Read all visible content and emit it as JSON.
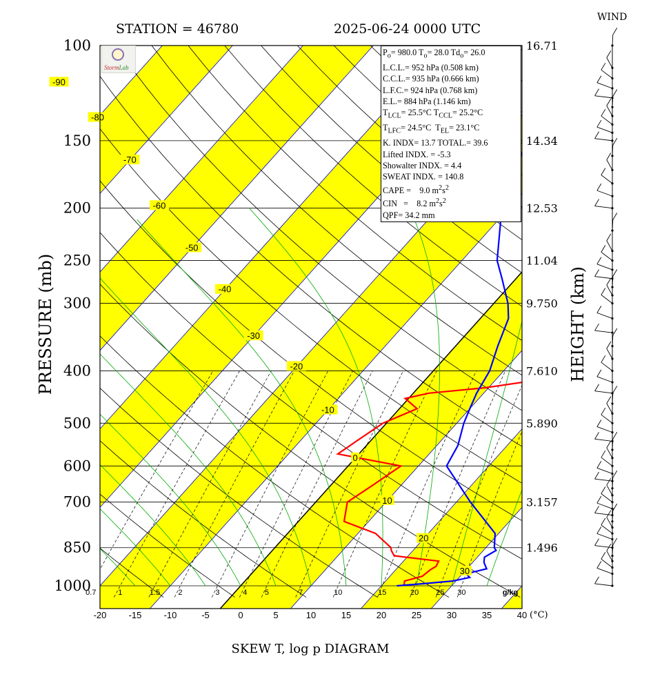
{
  "header": {
    "station": "STATION = 46780",
    "datetime": "2025-06-24 0000 UTC",
    "wind_title": "WIND"
  },
  "footer": {
    "title": "SKEW T, log p DIAGRAM"
  },
  "colors": {
    "temperature": "#ff0000",
    "dewpoint": "#0000ff",
    "band": "#ffff00",
    "isotherm": "#0000cc",
    "dry_adiabat": "#000000",
    "moist_adiabat": "#00aa00",
    "mixing_ratio": "#000000"
  },
  "indices": {
    "p0": "980.0",
    "t0": "28.0",
    "td0": "26.0",
    "lcl": "L.C.L.= 952 hPa (0.508 km)",
    "ccl": "C.C.L.= 935 hPa (0.666 km)",
    "lfc": "L.F.C.= 924 hPa (0.768 km)",
    "el": "E.L.= 884 hPa (1.146 km)",
    "t_lcl": "25.5°C",
    "t_ccl": "25.2°C",
    "t_lfc": "24.5°C",
    "t_el": "23.1°C",
    "k_total": "K. INDX= 13.7  TOTAL.= 39.6",
    "lifted": "Lifted INDX. =   -5.3",
    "showalter": "Showalter INDX. =     4.4",
    "sweat": "SWEAT INDX. =   140.8",
    "cape_val": "9.0",
    "cin_val": "8.2",
    "qpf": "QPF= 34.2 mm"
  },
  "chart_data": {
    "type": "line",
    "title": "SKEW T, log p DIAGRAM",
    "ylabel": "PRESSURE (mb)",
    "ylabel_right": "HEIGHT (km)",
    "xlabel_unit": "(°C)",
    "mixing_ratio_unit": "g/kg",
    "ylim": [
      1000,
      100
    ],
    "xlim": [
      -20,
      40
    ],
    "y_scale": "log",
    "x_ticks": [
      "-20",
      "-15",
      "-10",
      "-5",
      "0",
      "5",
      "10",
      "15",
      "20",
      "25",
      "30",
      "35",
      "40"
    ],
    "pressure_ticks": [
      "100",
      "150",
      "200",
      "250",
      "300",
      "400",
      "500",
      "600",
      "700",
      "850",
      "1000"
    ],
    "pressure_levels": [
      100,
      150,
      200,
      250,
      300,
      400,
      500,
      600,
      700,
      850,
      1000
    ],
    "height_ticks": [
      {
        "p": 100,
        "label": "16.71"
      },
      {
        "p": 150,
        "label": "14.34"
      },
      {
        "p": 200,
        "label": "12.53"
      },
      {
        "p": 250,
        "label": "11.04"
      },
      {
        "p": 300,
        "label": "9.750"
      },
      {
        "p": 400,
        "label": "7.610"
      },
      {
        "p": 500,
        "label": "5.890"
      },
      {
        "p": 700,
        "label": "3.157"
      },
      {
        "p": 850,
        "label": "1.496"
      }
    ],
    "isotherm_labels": [
      {
        "t": -90,
        "p": 117,
        "label": "-90"
      },
      {
        "t": -80,
        "p": 136,
        "label": "-80"
      },
      {
        "t": -70,
        "p": 163,
        "label": "-70"
      },
      {
        "t": -60,
        "p": 198,
        "label": "-60"
      },
      {
        "t": -50,
        "p": 237,
        "label": "-50"
      },
      {
        "t": -40,
        "p": 283,
        "label": "-40"
      },
      {
        "t": -30,
        "p": 345,
        "label": "-30"
      },
      {
        "t": -20,
        "p": 393,
        "label": "-20"
      },
      {
        "t": -10,
        "p": 473,
        "label": "-10"
      },
      {
        "t": 0,
        "p": 580,
        "label": "0"
      },
      {
        "t": 10,
        "p": 696,
        "label": "10"
      },
      {
        "t": 20,
        "p": 818,
        "label": "20"
      },
      {
        "t": 30,
        "p": 940,
        "label": "30"
      }
    ],
    "mixing_ratio_lines": [
      0.7,
      1,
      1.5,
      2,
      3,
      4,
      5,
      7,
      10,
      15,
      20,
      25,
      30
    ],
    "mixing_ratio_labels": [
      "0.7",
      "1",
      "1.5",
      "2",
      "3",
      "4",
      "5",
      "7",
      "10",
      "15",
      "20",
      "25",
      "30"
    ],
    "series": [
      {
        "name": "Temperature",
        "points": [
          [
            1000,
            23.2
          ],
          [
            980,
            22.7
          ],
          [
            960,
            24.6
          ],
          [
            935,
            24.9
          ],
          [
            920,
            25.3
          ],
          [
            900,
            25.0
          ],
          [
            880,
            18.0
          ],
          [
            860,
            16.9
          ],
          [
            850,
            16.5
          ],
          [
            800,
            12.5
          ],
          [
            760,
            6.5
          ],
          [
            700,
            4.5
          ],
          [
            650,
            6.0
          ],
          [
            600,
            7.5
          ],
          [
            570,
            -3.0
          ],
          [
            540,
            -2.0
          ],
          [
            500,
            -0.5
          ],
          [
            470,
            2.5
          ],
          [
            450,
            -0.5
          ],
          [
            440,
            2.2
          ],
          [
            430,
            9.5
          ],
          [
            415,
            16.5
          ],
          [
            405,
            15.5
          ],
          [
            395,
            12.5
          ],
          [
            380,
            15.5
          ],
          [
            370,
            12.0
          ],
          [
            350,
            13.0
          ],
          [
            330,
            13.5
          ],
          [
            300,
            7.0
          ],
          [
            270,
            6.0
          ],
          [
            250,
            4.0
          ],
          [
            225,
            5.0
          ],
          [
            200,
            2.0
          ],
          [
            180,
            6.0
          ],
          [
            165,
            6.0
          ],
          [
            155,
            5.0
          ],
          [
            145,
            1.0
          ],
          [
            135,
            0.5
          ],
          [
            120,
            2.0
          ],
          [
            100,
            7.0
          ]
        ]
      },
      {
        "name": "Dewpoint",
        "points": [
          [
            1000,
            22.2
          ],
          [
            990,
            26.0
          ],
          [
            980,
            29.5
          ],
          [
            965,
            31.5
          ],
          [
            950,
            30.5
          ],
          [
            930,
            32.8
          ],
          [
            905,
            31.6
          ],
          [
            885,
            31.0
          ],
          [
            860,
            31.8
          ],
          [
            850,
            31.2
          ],
          [
            800,
            29.5
          ],
          [
            700,
            22.0
          ],
          [
            600,
            14.0
          ],
          [
            550,
            13.0
          ],
          [
            500,
            11.0
          ],
          [
            470,
            10.0
          ],
          [
            440,
            9.0
          ],
          [
            400,
            8.0
          ],
          [
            360,
            6.0
          ],
          [
            320,
            4.0
          ],
          [
            300,
            2.0
          ],
          [
            270,
            -2.0
          ],
          [
            250,
            -5.0
          ],
          [
            200,
            -11.0
          ],
          [
            170,
            -14.0
          ],
          [
            150,
            -16.0
          ],
          [
            130,
            -15.0
          ],
          [
            115,
            -13.0
          ],
          [
            100,
            -9.0
          ]
        ]
      }
    ],
    "wind_levels": [
      1000,
      950,
      925,
      900,
      880,
      850,
      820,
      800,
      780,
      760,
      740,
      720,
      700,
      680,
      660,
      640,
      620,
      600,
      580,
      560,
      540,
      520,
      500,
      480,
      460,
      440,
      420,
      400,
      380,
      360,
      340,
      320,
      300,
      290,
      280,
      270,
      260,
      250,
      240,
      220,
      200,
      190,
      180,
      170,
      160,
      150,
      145,
      140,
      135,
      130,
      125,
      120,
      115,
      110,
      100
    ]
  }
}
